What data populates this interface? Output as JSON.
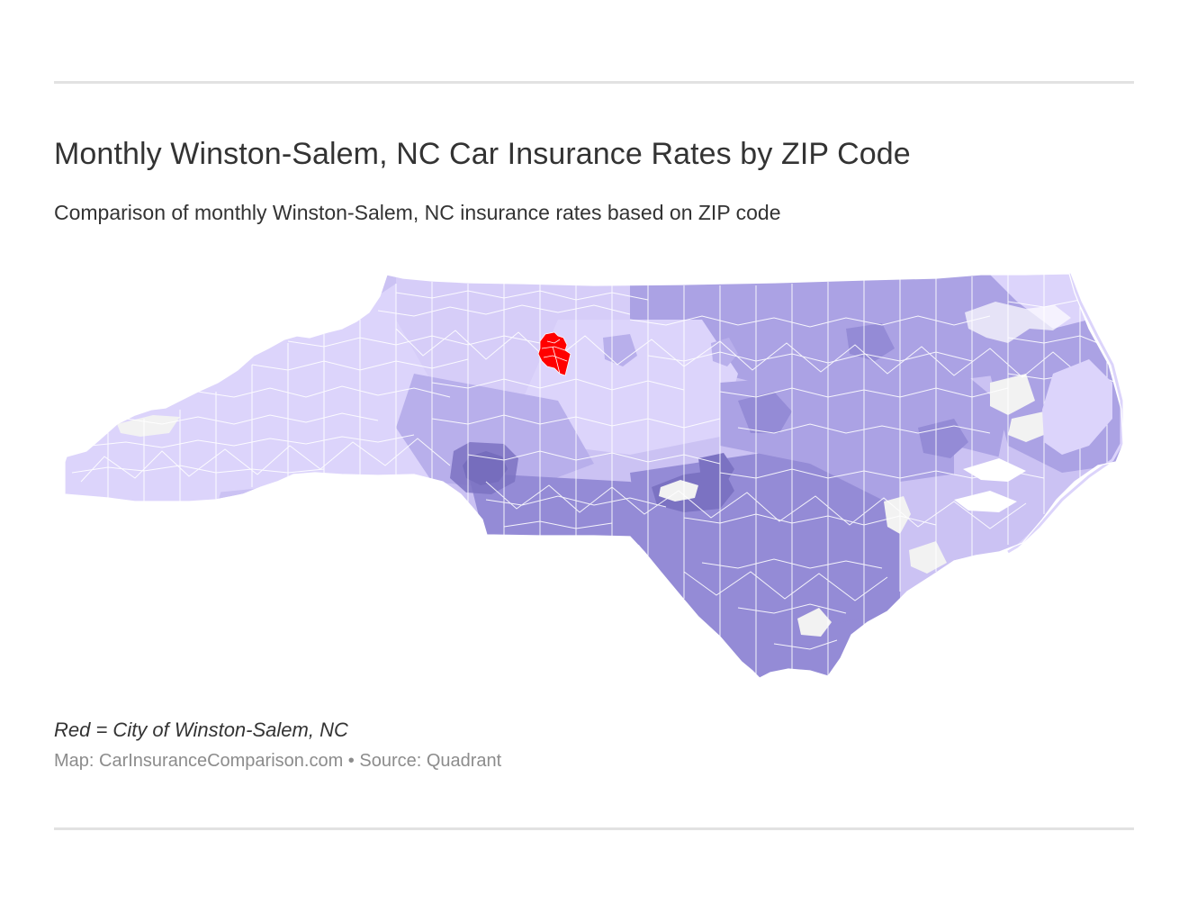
{
  "header": {
    "title": "Monthly Winston-Salem, NC Car Insurance Rates by ZIP Code",
    "subtitle": "Comparison of monthly Winston-Salem, NC insurance rates based on ZIP code"
  },
  "map": {
    "region": "North Carolina",
    "unit": "ZIP code",
    "colors": {
      "highlight": "#ff0000",
      "scale": [
        "#dcd4fb",
        "#cbc2f3",
        "#aba2e4",
        "#948bd6",
        "#7b72c2",
        "#5a519e"
      ],
      "no_data": "#f2f2f2",
      "border": "#ffffff"
    }
  },
  "footer": {
    "legend_note": "Red = City of Winston-Salem, NC",
    "credit": "Map: CarInsuranceComparison.com • Source: Quadrant"
  }
}
